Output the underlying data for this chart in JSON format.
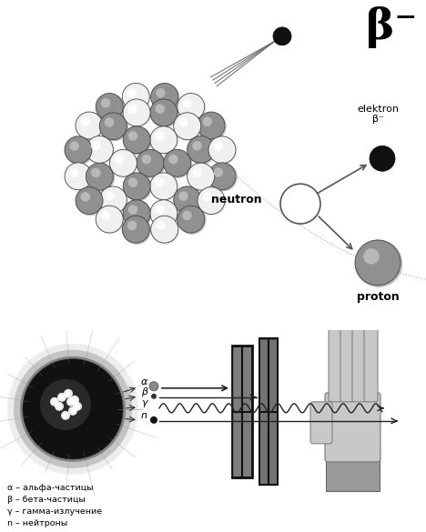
{
  "title_beta": "β⁻",
  "label_elektron": "elektron\nβ⁻",
  "label_neutron": "neutron",
  "label_proton": "proton",
  "legend_lines": [
    "α – альфа-частицы",
    "β – бета-частицы",
    "γ – гамма-излучение",
    "n – нейтроны"
  ],
  "upper_bg": "#ffffff",
  "lower_bg": "#d8d8d8",
  "fig_bg": "#c8c8c8",
  "sphere_gray": "#888888",
  "sphere_white": "#ffffff",
  "black": "#000000",
  "dark_gray": "#333333"
}
